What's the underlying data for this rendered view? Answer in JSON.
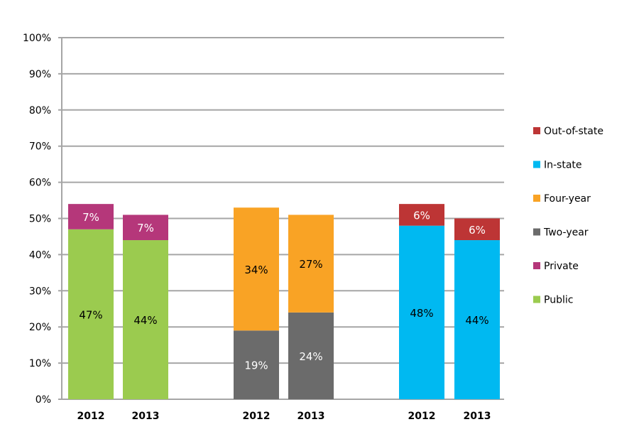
{
  "chart_data": {
    "type": "bar",
    "stacked": true,
    "ylim": [
      0,
      100
    ],
    "y_ticks": [
      "0%",
      "10%",
      "20%",
      "30%",
      "40%",
      "50%",
      "60%",
      "70%",
      "80%",
      "90%",
      "100%"
    ],
    "grid": true,
    "legend_position": "right",
    "groups": [
      {
        "categories": [
          "2012",
          "2013"
        ],
        "series": [
          {
            "name": "Public",
            "color": "#9bcb4f",
            "label_color": "#000000",
            "values": [
              47,
              44
            ],
            "labels": [
              "47%",
              "44%"
            ]
          },
          {
            "name": "Private",
            "color": "#b5377a",
            "label_color": "#ffffff",
            "values": [
              7,
              7
            ],
            "labels": [
              "7%",
              "7%"
            ]
          }
        ]
      },
      {
        "categories": [
          "2012",
          "2013"
        ],
        "series": [
          {
            "name": "Two-year",
            "color": "#6b6b6b",
            "label_color": "#ffffff",
            "values": [
              19,
              24
            ],
            "labels": [
              "19%",
              "24%"
            ]
          },
          {
            "name": "Four-year",
            "color": "#f9a325",
            "label_color": "#000000",
            "values": [
              34,
              27
            ],
            "labels": [
              "34%",
              "27%"
            ]
          }
        ]
      },
      {
        "categories": [
          "2012",
          "2013"
        ],
        "series": [
          {
            "name": "In-state",
            "color": "#00b9f1",
            "label_color": "#000000",
            "values": [
              48,
              44
            ],
            "labels": [
              "48%",
              "44%"
            ]
          },
          {
            "name": "Out-of-state",
            "color": "#bd3535",
            "label_color": "#ffffff",
            "values": [
              6,
              6
            ],
            "labels": [
              "6%",
              "6%"
            ]
          }
        ]
      }
    ],
    "legend": [
      {
        "name": "Out-of-state",
        "color": "#bd3535"
      },
      {
        "name": "In-state",
        "color": "#00b9f1"
      },
      {
        "name": "Four-year",
        "color": "#f9a325"
      },
      {
        "name": "Two-year",
        "color": "#6b6b6b"
      },
      {
        "name": "Private",
        "color": "#b5377a"
      },
      {
        "name": "Public",
        "color": "#9bcb4f"
      }
    ]
  }
}
